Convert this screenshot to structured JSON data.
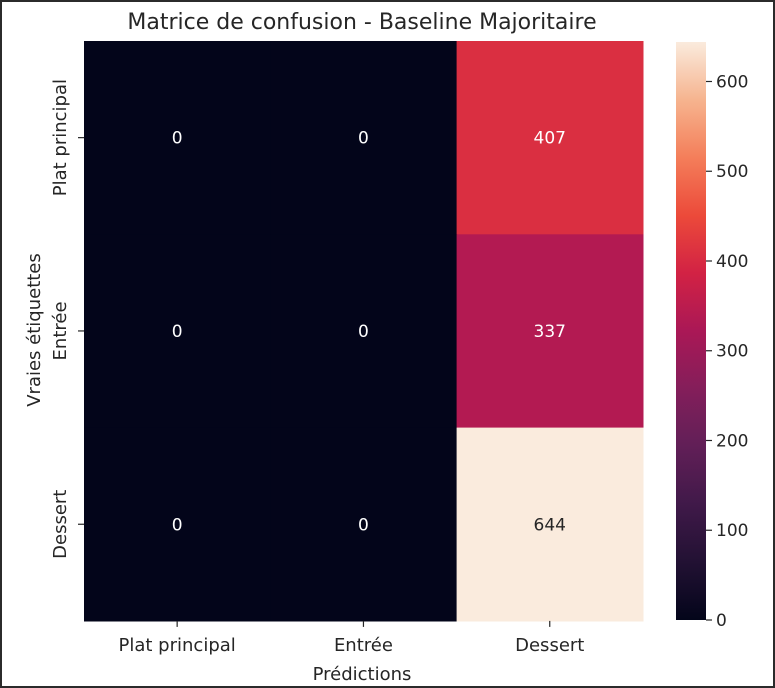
{
  "chart_data": {
    "type": "heatmap",
    "title": "Matrice de confusion - Baseline Majoritaire",
    "xlabel": "Prédictions",
    "ylabel": "Vraies étiquettes",
    "x_categories": [
      "Plat principal",
      "Entrée",
      "Dessert"
    ],
    "y_categories": [
      "Plat principal",
      "Entrée",
      "Dessert"
    ],
    "values": [
      [
        0,
        0,
        407
      ],
      [
        0,
        0,
        337
      ],
      [
        0,
        0,
        644
      ]
    ],
    "colorbar": {
      "min": 0,
      "max": 644,
      "ticks": [
        0,
        100,
        200,
        300,
        400,
        500,
        600
      ],
      "colormap": "rocket"
    }
  }
}
